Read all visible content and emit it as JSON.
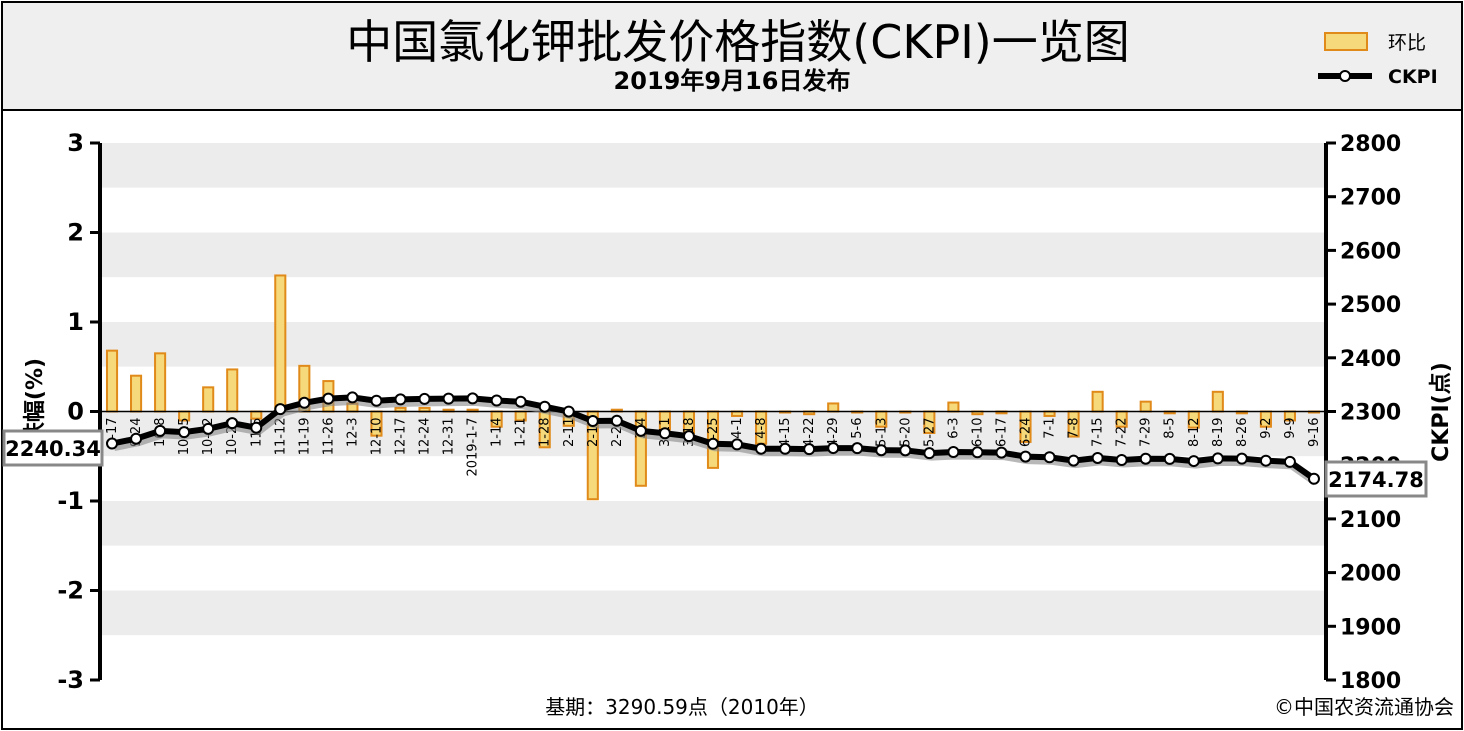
{
  "header": {
    "title": "中国氯化钾批发价格指数(CKPI)一览图",
    "subtitle": "2019年9月16日发布"
  },
  "legend": {
    "bar_label": "环比",
    "line_label": "CKPI"
  },
  "footer": {
    "base": "基期：3290.59点（2010年）",
    "copyright": "©中国农资流通协会"
  },
  "callouts": {
    "start": "2240.34",
    "end": "2174.78"
  },
  "chart_data": {
    "type": "bar",
    "title": "中国氯化钾批发价格指数(CKPI)一览图",
    "subtitle": "2019年9月16日发布",
    "categories": [
      "9-17",
      "9-24",
      "10-8",
      "10-15",
      "10-22",
      "10-29",
      "11-5",
      "11-12",
      "11-19",
      "11-26",
      "12-3",
      "12-10",
      "12-17",
      "12-24",
      "12-31",
      "2019-1-7",
      "1-14",
      "1-21",
      "1-28",
      "2-11",
      "2-18",
      "2-25",
      "3-4",
      "3-11",
      "3-18",
      "3-25",
      "4-1",
      "4-8",
      "4-15",
      "4-22",
      "4-29",
      "5-6",
      "5-13",
      "5-20",
      "5-27",
      "6-3",
      "6-10",
      "6-17",
      "6-24",
      "7-1",
      "7-8",
      "7-15",
      "7-22",
      "7-29",
      "8-5",
      "8-12",
      "8-19",
      "8-26",
      "9-2",
      "9-9",
      "9-16"
    ],
    "tick_labels": [
      "9-17",
      "9-24",
      "10-8",
      "10-15",
      "10-22",
      "10-29",
      "11-5",
      "11-12",
      "11-19",
      "11-26",
      "12-3",
      "12-10",
      "12-17",
      "12-24",
      "12-31",
      "2019-1-7",
      "1-14",
      "1-21",
      "1-28",
      "2-11",
      "2-18",
      "2-25",
      "3-4",
      "3-11",
      "3-18",
      "3-25",
      "4-1",
      "4-8",
      "4-15",
      "4-22",
      "4-29",
      "5-6",
      "5-13",
      "5-20",
      "5-27",
      "6-3",
      "6-10",
      "6-17",
      "6-24",
      "7-1",
      "7-8",
      "7-15",
      "7-22",
      "7-29",
      "8-5",
      "8-12",
      "8-19",
      "8-26",
      "9-2",
      "9-9",
      "9-16"
    ],
    "series": [
      {
        "name": "环比",
        "type": "bar",
        "axis": "left",
        "values": [
          0.68,
          0.4,
          0.65,
          -0.1,
          0.27,
          0.47,
          -0.08,
          1.52,
          0.51,
          0.34,
          0.09,
          -0.27,
          0.04,
          0.04,
          0.02,
          0.02,
          -0.17,
          -0.1,
          -0.4,
          -0.16,
          -0.98,
          0.02,
          -0.83,
          -0.2,
          -0.24,
          -0.63,
          -0.05,
          -0.36,
          -0.01,
          -0.03,
          0.09,
          -0.01,
          -0.17,
          -0.01,
          -0.24,
          0.1,
          -0.03,
          -0.02,
          -0.34,
          -0.05,
          -0.28,
          0.22,
          -0.17,
          0.11,
          -0.02,
          -0.18,
          0.22,
          -0.02,
          -0.17,
          -0.1,
          -0.01
        ],
        "color": "#f0a830"
      },
      {
        "name": "CKPI",
        "type": "line",
        "axis": "right",
        "values": [
          2240.34,
          2249.3,
          2263.9,
          2261.6,
          2267.7,
          2278.3,
          2269.8,
          2304.4,
          2316.2,
          2324.0,
          2326.2,
          2320.0,
          2322.5,
          2323.4,
          2324.0,
          2324.4,
          2320.5,
          2318.2,
          2308.9,
          2299.8,
          2282.3,
          2282.8,
          2264.0,
          2259.5,
          2254.1,
          2239.9,
          2238.8,
          2230.7,
          2230.6,
          2229.9,
          2231.9,
          2231.7,
          2227.9,
          2227.7,
          2222.4,
          2224.6,
          2224.0,
          2223.5,
          2216.0,
          2214.8,
          2208.6,
          2213.5,
          2209.7,
          2212.1,
          2211.7,
          2207.7,
          2212.6,
          2212.2,
          2208.4,
          2206.2,
          2174.78
        ],
        "color": "#000000"
      }
    ],
    "ylabel": "涨跌幅(%)",
    "ylabel_right": "CKPI(点)",
    "ylim": [
      -3,
      3
    ],
    "yticks": [
      -3,
      -2,
      -1,
      0,
      1,
      2,
      3
    ],
    "ylim_right": [
      1800,
      2800
    ],
    "yticks_right": [
      1800,
      1900,
      2000,
      2100,
      2200,
      2300,
      2400,
      2500,
      2600,
      2700,
      2800
    ],
    "grid": "horizontal bands",
    "legend_position": "top-right"
  }
}
